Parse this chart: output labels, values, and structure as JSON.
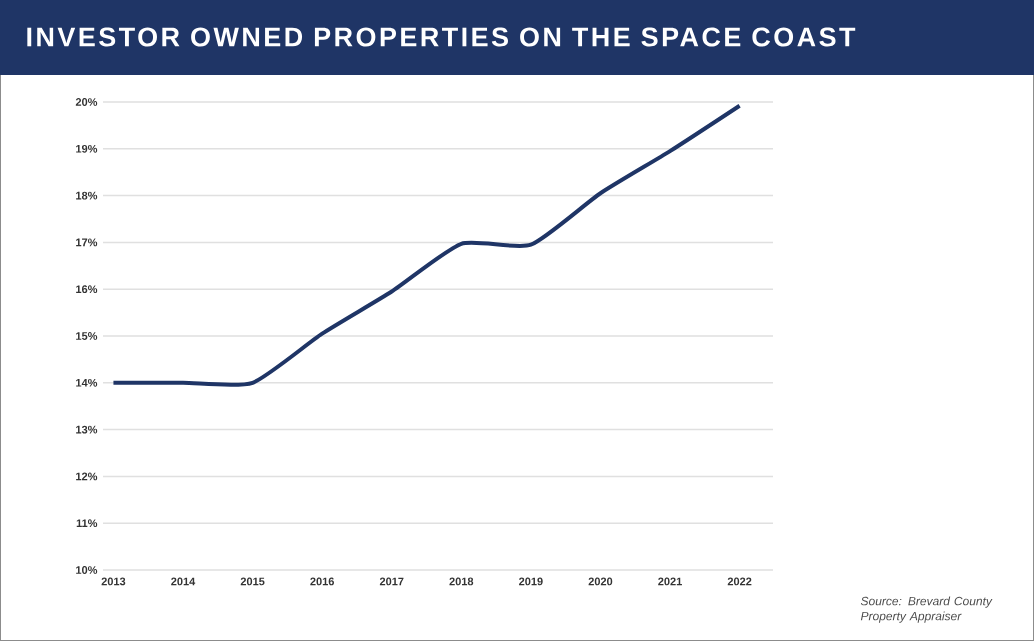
{
  "chart_data": {
    "type": "line",
    "title": "INVESTOR OWNED PROPERTIES ON THE SPACE COAST",
    "categories": [
      "2013",
      "2014",
      "2015",
      "2016",
      "2017",
      "2018",
      "2019",
      "2020",
      "2021",
      "2022"
    ],
    "series": [
      {
        "color": "#1f3566",
        "values": [
          14,
          14,
          14,
          15.05,
          15.95,
          16.97,
          16.95,
          18.05,
          18.95,
          19.92
        ]
      }
    ],
    "ylim": [
      10,
      20
    ],
    "yticks": [
      {
        "value": 10,
        "label": "10%"
      },
      {
        "value": 11,
        "label": "11%"
      },
      {
        "value": 12,
        "label": "12%"
      },
      {
        "value": 13,
        "label": "13%"
      },
      {
        "value": 14,
        "label": "14%"
      },
      {
        "value": 15,
        "label": "15%"
      },
      {
        "value": 16,
        "label": "16%"
      },
      {
        "value": 17,
        "label": "17%"
      },
      {
        "value": 18,
        "label": "18%"
      },
      {
        "value": 19,
        "label": "19%"
      },
      {
        "value": 20,
        "label": "20%"
      }
    ],
    "grid": "y",
    "marker": "none",
    "line_style": "solid",
    "annotations": [
      "Source: Brevard County Property Appraiser"
    ]
  }
}
